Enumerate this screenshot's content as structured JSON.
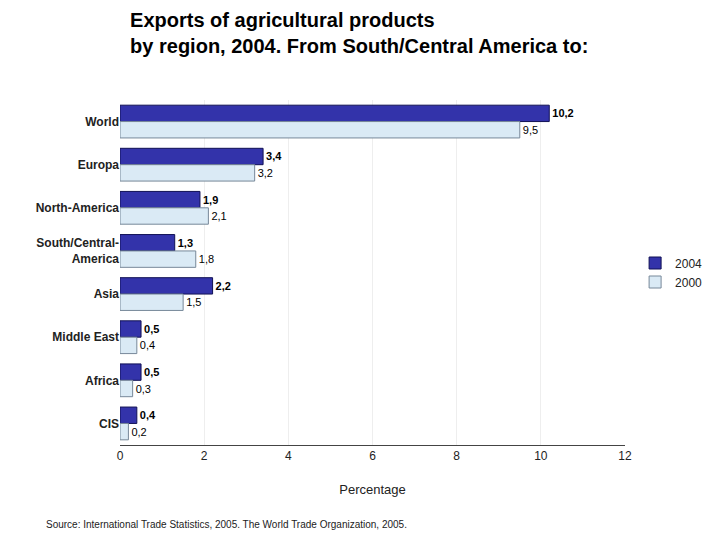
{
  "chart_data": {
    "type": "bar",
    "orientation": "horizontal",
    "title": "Exports of agricultural products",
    "subtitle": "by region, 2004. From South/Central America to:",
    "xlabel": "Percentage",
    "source": "Source: International Trade Statistics, 2005. The World Trade Organization, 2005.",
    "categories": [
      "World",
      "Europa",
      "North-America",
      "South/Central-\nAmerica",
      "Asia",
      "Middle East",
      "Africa",
      "CIS"
    ],
    "series": [
      {
        "name": "2004",
        "color": "#3333aa",
        "values": [
          10.2,
          3.4,
          1.9,
          1.3,
          2.2,
          0.5,
          0.5,
          0.4
        ],
        "value_labels": [
          "10,2",
          "3,4",
          "1,9",
          "1,3",
          "2,2",
          "0,5",
          "0,5",
          "0,4"
        ]
      },
      {
        "name": "2000",
        "color": "#daeaf5",
        "values": [
          9.5,
          3.2,
          2.1,
          1.8,
          1.5,
          0.4,
          0.3,
          0.2
        ],
        "value_labels": [
          "9,5",
          "3,2",
          "2,1",
          "1,8",
          "1,5",
          "0,4",
          "0,3",
          "0,2"
        ]
      }
    ],
    "data_labels": true,
    "xlim": [
      0,
      12
    ],
    "xticks": [
      0,
      2,
      4,
      6,
      8,
      10,
      12
    ],
    "grid": true,
    "legend": "right"
  }
}
